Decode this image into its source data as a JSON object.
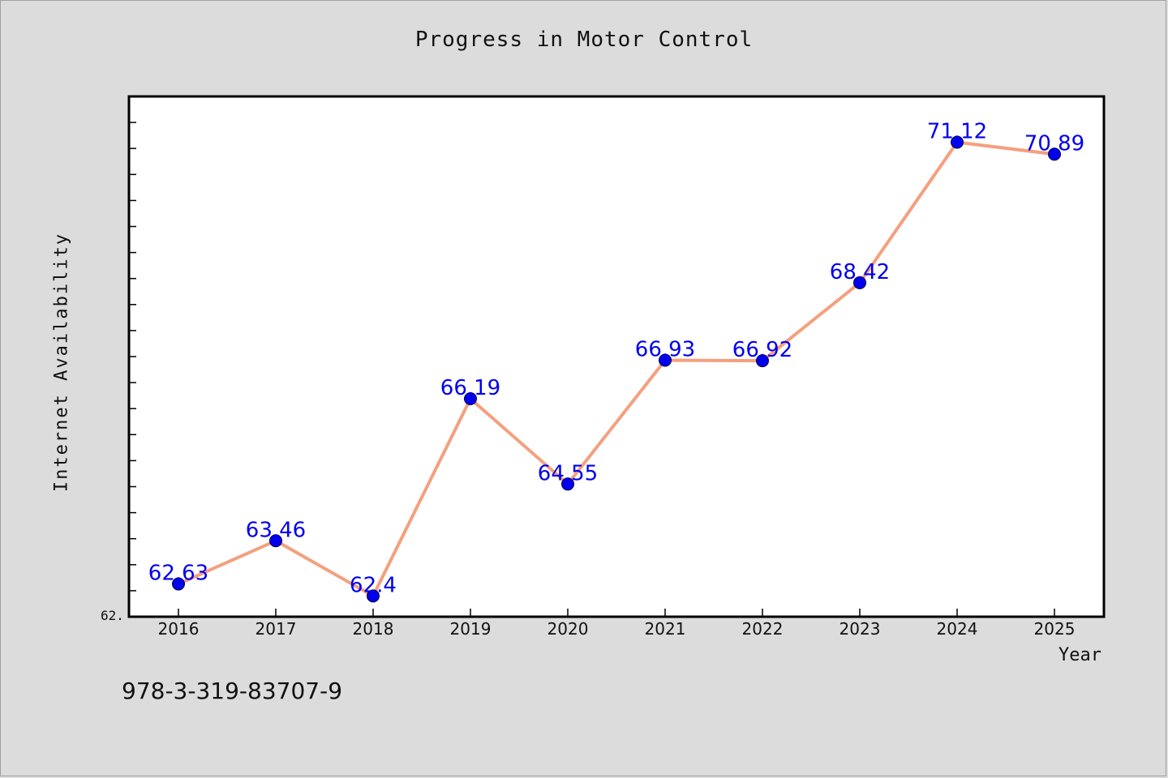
{
  "chart_data": {
    "type": "line",
    "title": "Progress in Motor Control",
    "xlabel": "Year",
    "ylabel": "Internet Availability",
    "x": [
      "2016",
      "2017",
      "2018",
      "2019",
      "2020",
      "2021",
      "2022",
      "2023",
      "2024",
      "2025"
    ],
    "series": [
      {
        "values": [
          62.63,
          63.46,
          62.4,
          66.19,
          64.55,
          66.93,
          66.92,
          68.42,
          71.12,
          70.89
        ],
        "data_labels": [
          "62.63",
          "63.46",
          "62.4",
          "66.19",
          "64.55",
          "66.93",
          "66.92",
          "68.42",
          "71.12",
          "70.89"
        ]
      }
    ],
    "ylim": [
      62.0,
      72.0
    ],
    "y_tick_label_shown": "62.",
    "grid": false,
    "line_color": "#f4a07e",
    "marker_color": "#0000ee",
    "label_color": "#0000ee"
  },
  "footnote": "978-3-319-83707-9"
}
